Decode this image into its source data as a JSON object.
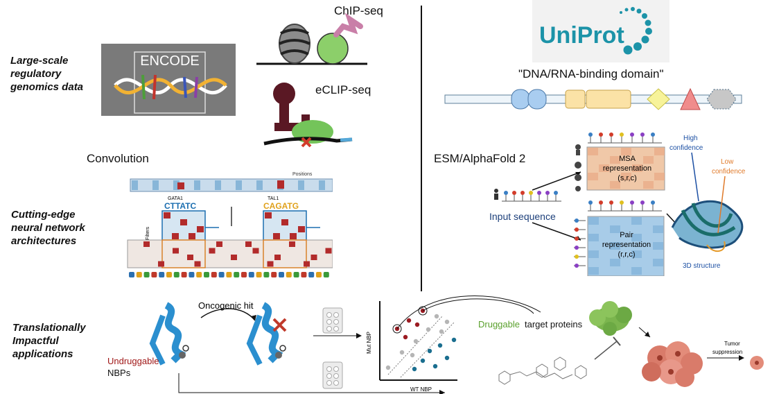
{
  "left": {
    "row1_label": [
      "Large-scale",
      "regulatory",
      "genomics data"
    ],
    "encode_logo": "ENCODE",
    "chipseq": "ChIP-seq",
    "eclipseq": "eCLIP-seq",
    "convolution": "Convolution",
    "row2_label": [
      "Cutting-edge",
      "neural network",
      "architectures"
    ],
    "cnn": {
      "positions": "Positions",
      "filters": "Filters",
      "motif1_name": "GATA1",
      "motif1_seq": "CTTATC",
      "motif2_name": "TAL1",
      "motif2_seq": "CAGATG"
    }
  },
  "right": {
    "uniprot_logo": "UniProt",
    "domain_title": "\"DNA/RNA-binding domain\"",
    "esm_title": "ESM/AlphaFold 2",
    "input_sequence": "Input sequence",
    "msa_label": [
      "MSA",
      "representation",
      "(s,r,c)"
    ],
    "pair_label": [
      "Pair",
      "representation",
      "(r,r,c)"
    ],
    "high_conf": [
      "High",
      "confidence"
    ],
    "low_conf": [
      "Low",
      "confidence"
    ],
    "structure_label": "3D structure"
  },
  "bottom": {
    "row3_label": [
      "Translationally",
      "Impactful",
      "applications"
    ],
    "oncogenic_hit": "Oncogenic hit",
    "undruggable": "Undruggable",
    "nbps": "NBPs",
    "y_axis": "Mut NBP",
    "x_axis": "WT NBP",
    "druggable": "Druggable",
    "target_proteins": "target proteins",
    "tumor_suppression": [
      "Tumor",
      "suppression"
    ]
  },
  "colors": {
    "druggable_green": "#5aa02c",
    "undruggable_red": "#a01818",
    "dark_red": "#9b1b22",
    "scatter_blue": "#1a6e8f",
    "scatter_gray": "#b5b5b5",
    "uniprot_teal": "#1c93a8",
    "protein_blue": "#2b8fcf"
  },
  "icons": [
    "chromatin-nucleosome-icon",
    "rna-binding-protein-icon",
    "protein-ribbon-icon",
    "cell-plate-icon",
    "tumor-cluster-icon"
  ]
}
